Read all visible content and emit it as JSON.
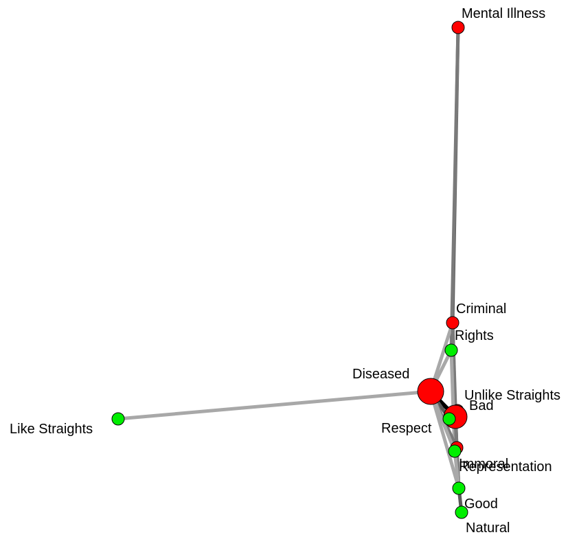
{
  "colors": {
    "negative": "#ff0000",
    "positive": "#00ee00",
    "stroke": "#000000",
    "edge_dark": "#5a5a5a",
    "edge_mid": "#7a7a7a",
    "edge_light": "#a8a8a8",
    "edge_black": "#000000"
  },
  "nodes": [
    {
      "id": "mental-illness",
      "label": "Mental Illness",
      "group": "negative"
    },
    {
      "id": "criminal",
      "label": "Criminal",
      "group": "negative"
    },
    {
      "id": "rights",
      "label": "Rights",
      "group": "positive"
    },
    {
      "id": "diseased",
      "label": "Diseased",
      "group": "negative"
    },
    {
      "id": "unlike-straights",
      "label": "Unlike Straights",
      "group": "negative"
    },
    {
      "id": "bad",
      "label": "Bad",
      "group": "negative"
    },
    {
      "id": "respect",
      "label": "Respect",
      "group": "positive"
    },
    {
      "id": "like-straights",
      "label": "Like Straights",
      "group": "positive"
    },
    {
      "id": "immoral",
      "label": "Immoral",
      "group": "negative"
    },
    {
      "id": "representation",
      "label": "Representation",
      "group": "positive"
    },
    {
      "id": "good",
      "label": "Good",
      "group": "positive"
    },
    {
      "id": "natural",
      "label": "Natural",
      "group": "positive"
    }
  ],
  "edges": [
    {
      "source": "mental-illness",
      "target": "criminal",
      "tone": "edge_dark"
    },
    {
      "source": "mental-illness",
      "target": "rights",
      "tone": "edge_mid"
    },
    {
      "source": "criminal",
      "target": "diseased",
      "tone": "edge_light"
    },
    {
      "source": "rights",
      "target": "diseased",
      "tone": "edge_light"
    },
    {
      "source": "criminal",
      "target": "bad",
      "tone": "edge_dark"
    },
    {
      "source": "rights",
      "target": "bad",
      "tone": "edge_mid"
    },
    {
      "source": "criminal",
      "target": "immoral",
      "tone": "edge_mid"
    },
    {
      "source": "rights",
      "target": "representation",
      "tone": "edge_light"
    },
    {
      "source": "like-straights",
      "target": "diseased",
      "tone": "edge_light"
    },
    {
      "source": "diseased",
      "target": "bad",
      "tone": "edge_black"
    },
    {
      "source": "diseased",
      "target": "respect",
      "tone": "edge_dark"
    },
    {
      "source": "diseased",
      "target": "immoral",
      "tone": "edge_mid"
    },
    {
      "source": "diseased",
      "target": "representation",
      "tone": "edge_light"
    },
    {
      "source": "diseased",
      "target": "good",
      "tone": "edge_light"
    },
    {
      "source": "bad",
      "target": "immoral",
      "tone": "edge_dark"
    },
    {
      "source": "bad",
      "target": "good",
      "tone": "edge_mid"
    },
    {
      "source": "immoral",
      "target": "good",
      "tone": "edge_mid"
    },
    {
      "source": "representation",
      "target": "natural",
      "tone": "edge_light"
    },
    {
      "source": "good",
      "target": "natural",
      "tone": "edge_dark"
    }
  ]
}
